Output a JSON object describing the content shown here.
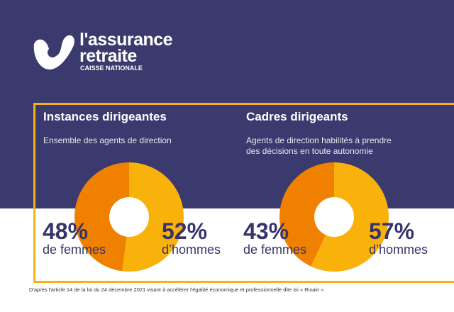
{
  "logo": {
    "line1": "l'assurance",
    "line2": "retraite",
    "line3": "CAISSE NATIONALE"
  },
  "colors": {
    "navy": "#3a3a6e",
    "frame": "#f7b219",
    "women": "#f08000",
    "men": "#f9b10b",
    "text_dark": "#35346b"
  },
  "panels": [
    {
      "title": "Instances dirigeantes",
      "subtitle": [
        "Ensemble des agents de direction"
      ],
      "women_pct": "48%",
      "women_label": "de femmes",
      "men_pct": "52%",
      "men_label": "d’hommes"
    },
    {
      "title": "Cadres dirigeants",
      "subtitle": [
        "Agents de direction habilités à prendre",
        "des décisions en toute autonomie"
      ],
      "women_pct": "43%",
      "women_label": "de femmes",
      "men_pct": "57%",
      "men_label": "d’hommes"
    }
  ],
  "footnote": "D'après l'article 14 de la loi du 24 décembre 2021 visant à accélérer l'égalité économique et professionnelle dite loi « Rixain »",
  "chart_data": [
    {
      "type": "pie",
      "title": "Instances dirigeantes",
      "subtitle": "Ensemble des agents de direction",
      "categories": [
        "de femmes",
        "d’hommes"
      ],
      "values": [
        48,
        52
      ],
      "unit": "%"
    },
    {
      "type": "pie",
      "title": "Cadres dirigeants",
      "subtitle": "Agents de direction habilités à prendre des décisions en toute autonomie",
      "categories": [
        "de femmes",
        "d’hommes"
      ],
      "values": [
        43,
        57
      ],
      "unit": "%"
    }
  ]
}
